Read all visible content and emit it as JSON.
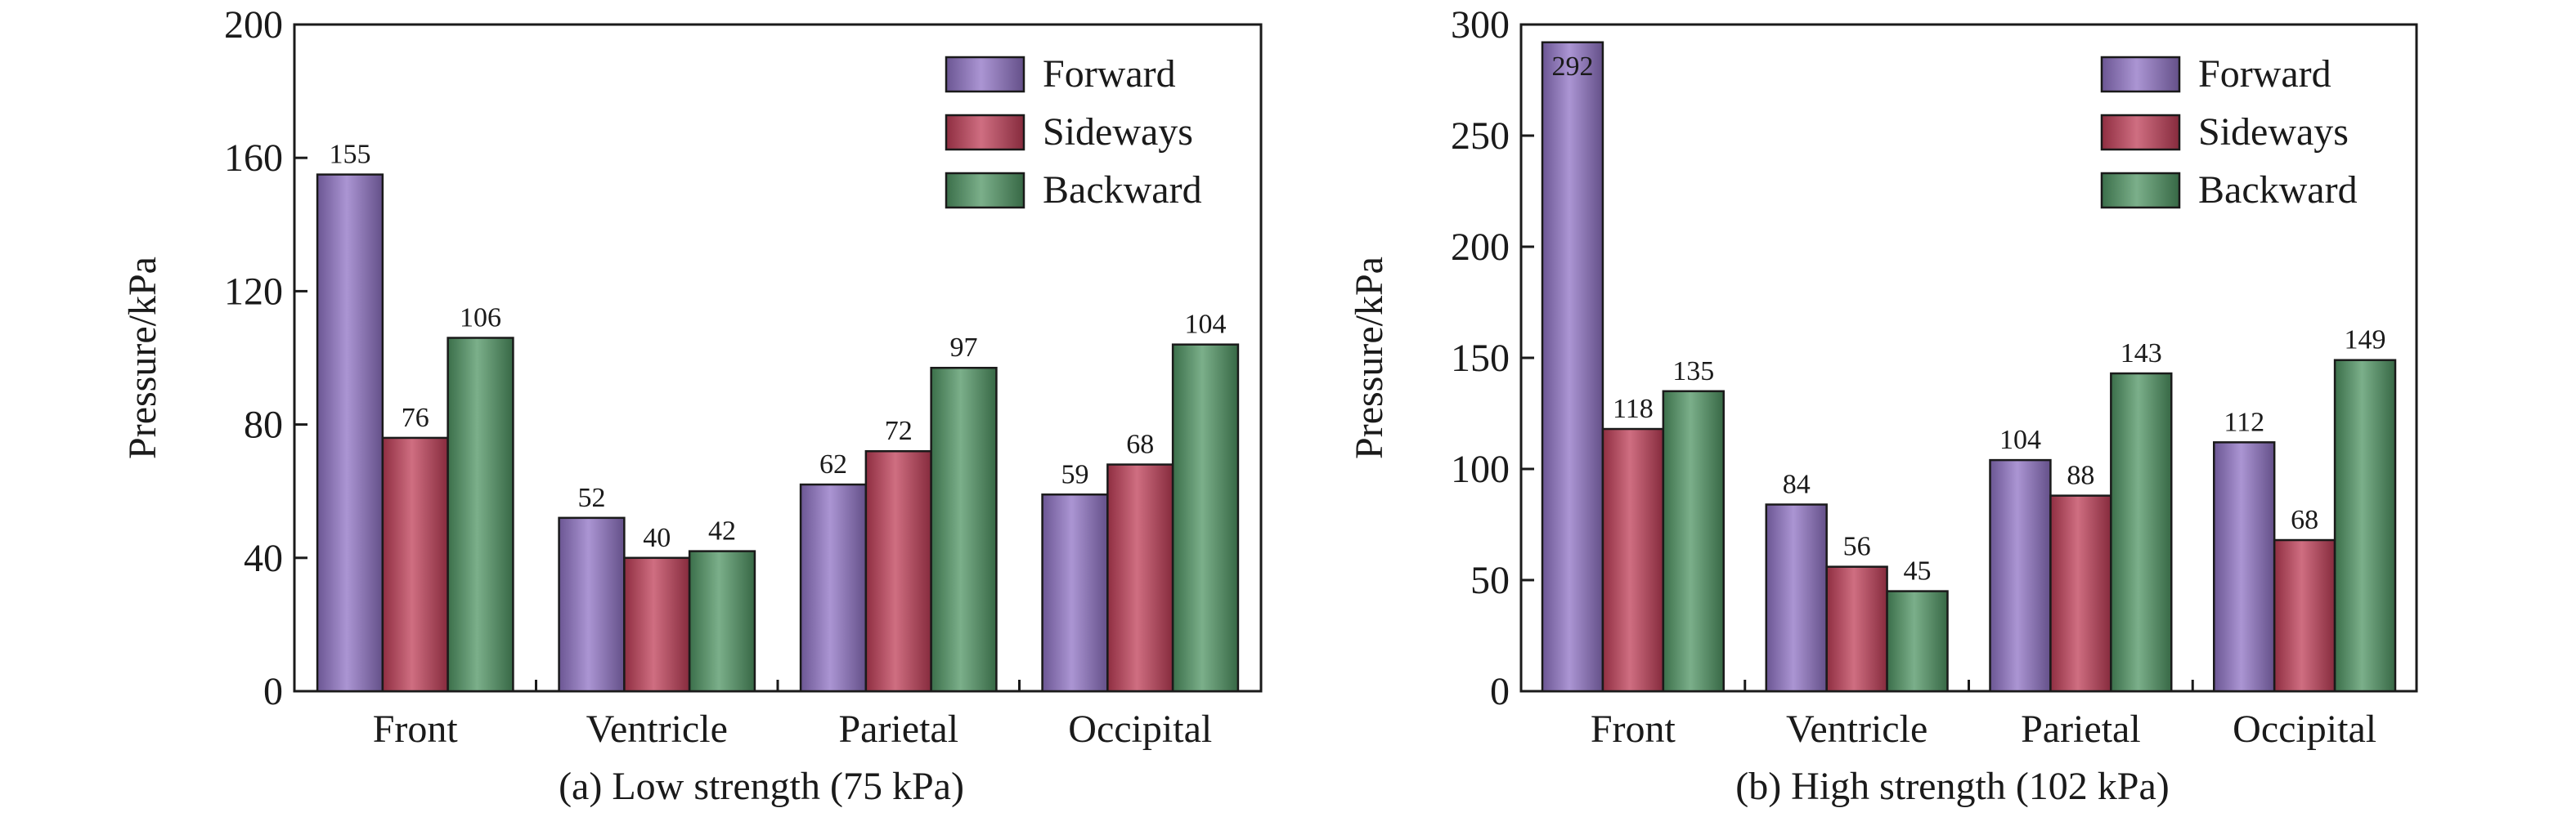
{
  "colors": {
    "Forward": "#8f72c4",
    "Sideways": "#bf3d57",
    "Backward": "#4f9463"
  },
  "chart_data": [
    {
      "type": "bar",
      "caption": "(a) Low strength (75 kPa)",
      "ylabel": "Pressure/kPa",
      "xlabel": "",
      "ylim": [
        0,
        200
      ],
      "yticks": [
        0,
        40,
        80,
        120,
        160,
        200
      ],
      "legend_position": "top-right",
      "grid": false,
      "categories": [
        "Front",
        "Ventricle",
        "Parietal",
        "Occipital"
      ],
      "series": [
        {
          "name": "Forward",
          "values": [
            155,
            52,
            62,
            59
          ]
        },
        {
          "name": "Sideways",
          "values": [
            76,
            40,
            72,
            68
          ]
        },
        {
          "name": "Backward",
          "values": [
            106,
            42,
            97,
            104
          ]
        }
      ]
    },
    {
      "type": "bar",
      "caption": "(b) High strength (102 kPa)",
      "ylabel": "Pressure/kPa",
      "xlabel": "",
      "ylim": [
        0,
        300
      ],
      "yticks": [
        0,
        50,
        100,
        150,
        200,
        250,
        300
      ],
      "legend_position": "top-right",
      "grid": false,
      "categories": [
        "Front",
        "Ventricle",
        "Parietal",
        "Occipital"
      ],
      "series": [
        {
          "name": "Forward",
          "values": [
            292,
            84,
            104,
            112
          ]
        },
        {
          "name": "Sideways",
          "values": [
            118,
            56,
            88,
            68
          ]
        },
        {
          "name": "Backward",
          "values": [
            135,
            45,
            143,
            149
          ]
        }
      ]
    }
  ]
}
